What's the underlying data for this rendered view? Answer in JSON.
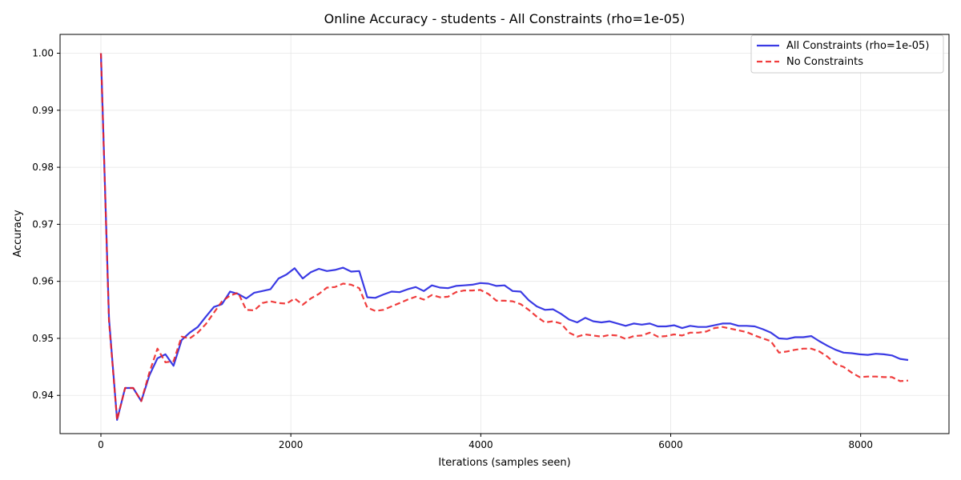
{
  "chart_data": {
    "type": "line",
    "title": "Online Accuracy - students - All Constraints (rho=1e-05)",
    "xlabel": "Iterations (samples seen)",
    "ylabel": "Accuracy",
    "xlim": [
      -430,
      8930
    ],
    "ylim": [
      0.9333,
      1.0033
    ],
    "xticks": [
      0,
      2000,
      4000,
      6000,
      8000
    ],
    "xtick_labels": [
      "0",
      "2000",
      "4000",
      "6000",
      "8000"
    ],
    "yticks": [
      0.94,
      0.95,
      0.96,
      0.97,
      0.98,
      0.99,
      1.0
    ],
    "ytick_labels": [
      "0.94",
      "0.95",
      "0.96",
      "0.97",
      "0.98",
      "0.99",
      "1.00"
    ],
    "grid": true,
    "legend_position": "top-right",
    "series": [
      {
        "name": "All Constraints (rho=1e-05)",
        "color": "#1f1fe0",
        "style": "solid",
        "x": [
          0,
          85,
          170,
          255,
          340,
          425,
          510,
          595,
          680,
          765,
          850,
          935,
          1020,
          1105,
          1190,
          1275,
          1360,
          1445,
          1530,
          1615,
          1700,
          1785,
          1870,
          1955,
          2040,
          2125,
          2210,
          2295,
          2380,
          2465,
          2550,
          2635,
          2720,
          2805,
          2890,
          2975,
          3060,
          3145,
          3230,
          3315,
          3400,
          3485,
          3570,
          3655,
          3740,
          3825,
          3910,
          3995,
          4080,
          4165,
          4250,
          4335,
          4420,
          4505,
          4590,
          4675,
          4760,
          4845,
          4930,
          5015,
          5100,
          5185,
          5270,
          5355,
          5440,
          5525,
          5610,
          5695,
          5780,
          5865,
          5950,
          6035,
          6120,
          6205,
          6290,
          6375,
          6460,
          6545,
          6630,
          6715,
          6800,
          6885,
          6970,
          7055,
          7140,
          7225,
          7310,
          7395,
          7480,
          7565,
          7650,
          7735,
          7820,
          7905,
          7990,
          8075,
          8160,
          8245,
          8330,
          8415,
          8500
        ],
        "values": [
          1.0,
          0.9535,
          0.9357,
          0.9413,
          0.9413,
          0.939,
          0.9435,
          0.9465,
          0.9472,
          0.9452,
          0.9497,
          0.951,
          0.952,
          0.9538,
          0.9555,
          0.956,
          0.9582,
          0.9578,
          0.957,
          0.958,
          0.9583,
          0.9586,
          0.9605,
          0.9612,
          0.9623,
          0.9605,
          0.9616,
          0.9622,
          0.9618,
          0.962,
          0.9624,
          0.9617,
          0.9618,
          0.9572,
          0.9571,
          0.9577,
          0.9582,
          0.9581,
          0.9586,
          0.959,
          0.9583,
          0.9593,
          0.9589,
          0.9588,
          0.9592,
          0.9593,
          0.9594,
          0.9597,
          0.9596,
          0.9592,
          0.9593,
          0.9583,
          0.9582,
          0.9567,
          0.9556,
          0.955,
          0.9551,
          0.9543,
          0.9533,
          0.9528,
          0.9536,
          0.953,
          0.9528,
          0.953,
          0.9526,
          0.9522,
          0.9526,
          0.9524,
          0.9526,
          0.9521,
          0.9521,
          0.9523,
          0.9518,
          0.9522,
          0.952,
          0.952,
          0.9523,
          0.9526,
          0.9526,
          0.9522,
          0.9522,
          0.9521,
          0.9516,
          0.951,
          0.95,
          0.9499,
          0.9502,
          0.9502,
          0.9504,
          0.9495,
          0.9487,
          0.948,
          0.9475,
          0.9474,
          0.9472,
          0.9471,
          0.9473,
          0.9472,
          0.947,
          0.9464,
          0.9462
        ]
      },
      {
        "name": "No Constraints",
        "color": "#ee2222",
        "style": "dashed",
        "x": [
          0,
          85,
          170,
          255,
          340,
          425,
          510,
          595,
          680,
          765,
          850,
          935,
          1020,
          1105,
          1190,
          1275,
          1360,
          1445,
          1530,
          1615,
          1700,
          1785,
          1870,
          1955,
          2040,
          2125,
          2210,
          2295,
          2380,
          2465,
          2550,
          2635,
          2720,
          2805,
          2890,
          2975,
          3060,
          3145,
          3230,
          3315,
          3400,
          3485,
          3570,
          3655,
          3740,
          3825,
          3910,
          3995,
          4080,
          4165,
          4250,
          4335,
          4420,
          4505,
          4590,
          4675,
          4760,
          4845,
          4930,
          5015,
          5100,
          5185,
          5270,
          5355,
          5440,
          5525,
          5610,
          5695,
          5780,
          5865,
          5950,
          6035,
          6120,
          6205,
          6290,
          6375,
          6460,
          6545,
          6630,
          6715,
          6800,
          6885,
          6970,
          7055,
          7140,
          7225,
          7310,
          7395,
          7480,
          7565,
          7650,
          7735,
          7820,
          7905,
          7990,
          8075,
          8160,
          8245,
          8330,
          8415,
          8500
        ],
        "values": [
          1.0,
          0.953,
          0.9357,
          0.9413,
          0.9413,
          0.939,
          0.944,
          0.9482,
          0.9458,
          0.946,
          0.9503,
          0.95,
          0.951,
          0.9525,
          0.9545,
          0.9565,
          0.9575,
          0.958,
          0.955,
          0.9549,
          0.9562,
          0.9565,
          0.9562,
          0.9561,
          0.957,
          0.9559,
          0.957,
          0.9578,
          0.9589,
          0.959,
          0.9596,
          0.9594,
          0.9588,
          0.9554,
          0.9548,
          0.955,
          0.9556,
          0.9562,
          0.9568,
          0.9573,
          0.9568,
          0.9576,
          0.9572,
          0.9573,
          0.9581,
          0.9584,
          0.9584,
          0.9585,
          0.9578,
          0.9566,
          0.9566,
          0.9565,
          0.956,
          0.955,
          0.9538,
          0.9528,
          0.953,
          0.9526,
          0.951,
          0.9503,
          0.9507,
          0.9505,
          0.9503,
          0.9506,
          0.9505,
          0.9499,
          0.9504,
          0.9505,
          0.951,
          0.9503,
          0.9504,
          0.9507,
          0.9505,
          0.951,
          0.951,
          0.9512,
          0.9518,
          0.952,
          0.9517,
          0.9514,
          0.9511,
          0.9505,
          0.95,
          0.9495,
          0.9475,
          0.9477,
          0.948,
          0.9482,
          0.9482,
          0.9477,
          0.9468,
          0.9455,
          0.945,
          0.944,
          0.9432,
          0.9433,
          0.9433,
          0.9432,
          0.9432,
          0.9425,
          0.9426
        ]
      }
    ]
  }
}
